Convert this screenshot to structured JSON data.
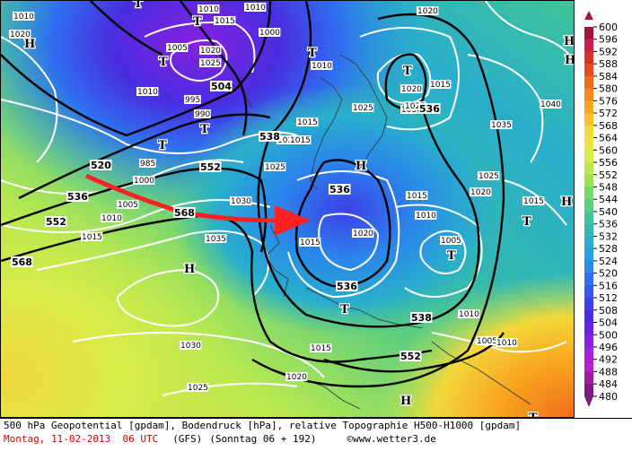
{
  "caption": {
    "line1": "500 hPa Geopotential [gpdam], Bodendruck [hPa], relative Topographie H500-H1000 [gpdam]",
    "date": "Montag, 11-02-2013  06 UTC",
    "model": "(GFS)",
    "run": "(Sonntag 06 + 192)",
    "copyright_symbol": "©",
    "site": "www.wetter3.de"
  },
  "legend": {
    "ticks": [
      "600",
      "596",
      "592",
      "588",
      "584",
      "580",
      "576",
      "572",
      "568",
      "564",
      "560",
      "556",
      "552",
      "548",
      "544",
      "540",
      "536",
      "532",
      "528",
      "524",
      "520",
      "516",
      "512",
      "508",
      "504",
      "500",
      "496",
      "492",
      "488",
      "484",
      "480"
    ],
    "colors": [
      "#a0173b",
      "#c8204a",
      "#d8322f",
      "#e84b22",
      "#f06a1c",
      "#f58a1e",
      "#f9a61f",
      "#f7c128",
      "#f2d83b",
      "#e9e644",
      "#d6ec4a",
      "#b9e94e",
      "#96e158",
      "#77d86a",
      "#5ccd80",
      "#42c398",
      "#33b8b0",
      "#29aecb",
      "#269ee0",
      "#2a87ec",
      "#2f6ef0",
      "#3557ee",
      "#3c40e6",
      "#4a2de0",
      "#6a21e0",
      "#8720e0",
      "#a320dd",
      "#b51fc8",
      "#a01c9f",
      "#7d1a7e"
    ]
  },
  "map": {
    "pressure_labels": [
      "1010",
      "1015",
      "1010",
      "1000",
      "1005",
      "1020",
      "1025",
      "1010",
      "1020",
      "1010",
      "1015",
      "1020",
      "1015",
      "995",
      "990",
      "985",
      "1000",
      "1005",
      "1010",
      "1015",
      "1030",
      "1035",
      "1025",
      "1010",
      "1020",
      "1025",
      "1030",
      "1015",
      "1020",
      "1025",
      "1035",
      "1040",
      "1025",
      "1020",
      "1015",
      "1010",
      "1020",
      "1015",
      "1005",
      "1010",
      "1005",
      "1030",
      "1025",
      "1015",
      "1010",
      "1015",
      "1020"
    ],
    "geopot_labels": [
      "520",
      "536",
      "552",
      "568",
      "504",
      "538",
      "552",
      "568",
      "536",
      "536",
      "538",
      "536",
      "552"
    ],
    "highs": [
      "H",
      "H",
      "H",
      "H",
      "H",
      "H",
      "H"
    ],
    "lows": [
      "T",
      "T",
      "T",
      "T",
      "T",
      "T",
      "T",
      "T",
      "T",
      "T",
      "T"
    ]
  }
}
